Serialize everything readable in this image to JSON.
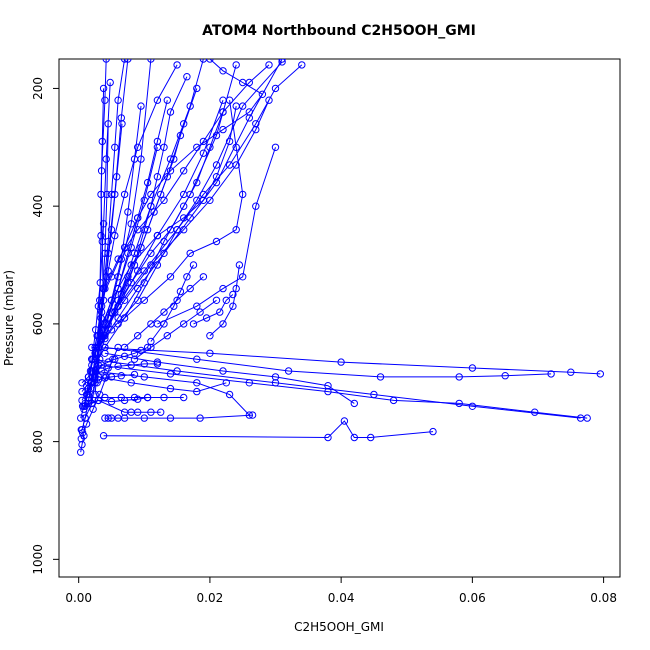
{
  "chart_data": {
    "type": "line",
    "title": "ATOM4 Northbound C2H5OOH_GMI",
    "xlabel": "C2H5OOH_GMI",
    "ylabel": "Pressure (mbar)",
    "xlim": [
      -0.003,
      0.0825
    ],
    "ylim": [
      1030,
      150
    ],
    "y_reversed": true,
    "x_ticks": [
      0.0,
      0.02,
      0.04,
      0.06,
      0.08
    ],
    "x_tick_labels": [
      "0.00",
      "0.02",
      "0.04",
      "0.06",
      "0.08"
    ],
    "y_ticks": [
      200,
      400,
      600,
      800,
      1000
    ],
    "y_tick_labels": [
      "200",
      "400",
      "600",
      "800",
      "1000"
    ],
    "marker": "open-circle",
    "color": "#0000ff",
    "series": [
      {
        "x": [
          0.0003,
          0.0005,
          0.0008,
          0.0006,
          0.0004
        ],
        "y": [
          818,
          805,
          790,
          785,
          780
        ]
      },
      {
        "x": [
          0.0005,
          0.001,
          0.002,
          0.0025,
          0.003,
          0.0032,
          0.0034,
          0.0035,
          0.004,
          0.0042
        ],
        "y": [
          780,
          760,
          735,
          700,
          640,
          560,
          450,
          340,
          220,
          150
        ]
      },
      {
        "x": [
          0.001,
          0.0015,
          0.0022,
          0.003,
          0.0038,
          0.0045,
          0.0055,
          0.0065,
          0.0075
        ],
        "y": [
          760,
          730,
          690,
          640,
          560,
          480,
          380,
          250,
          150
        ]
      },
      {
        "x": [
          0.0008,
          0.0018,
          0.003,
          0.0045,
          0.006,
          0.008,
          0.0095,
          0.011
        ],
        "y": [
          745,
          700,
          650,
          590,
          520,
          430,
          320,
          150
        ]
      },
      {
        "x": [
          0.0012,
          0.0025,
          0.004,
          0.006,
          0.0085,
          0.011,
          0.014,
          0.017,
          0.019
        ],
        "y": [
          720,
          680,
          625,
          560,
          480,
          400,
          320,
          230,
          150
        ]
      },
      {
        "x": [
          0.002,
          0.004,
          0.007,
          0.01,
          0.013,
          0.017,
          0.021,
          0.024
        ],
        "y": [
          680,
          640,
          590,
          530,
          460,
          380,
          280,
          160
        ]
      },
      {
        "x": [
          0.0025,
          0.005,
          0.009,
          0.012,
          0.015,
          0.018,
          0.021,
          0.025,
          0.031
        ],
        "y": [
          650,
          610,
          560,
          500,
          440,
          390,
          330,
          230,
          155
        ]
      },
      {
        "x": [
          0.003,
          0.006,
          0.009,
          0.013,
          0.017,
          0.021,
          0.026,
          0.031
        ],
        "y": [
          640,
          590,
          540,
          480,
          420,
          360,
          250,
          150
        ]
      },
      {
        "x": [
          0.0035,
          0.006,
          0.01,
          0.015,
          0.019,
          0.023,
          0.027,
          0.03,
          0.034
        ],
        "y": [
          625,
          570,
          510,
          440,
          380,
          330,
          260,
          200,
          160
        ]
      },
      {
        "x": [
          0.004,
          0.007,
          0.011,
          0.016,
          0.02,
          0.024,
          0.027,
          0.029
        ],
        "y": [
          610,
          560,
          500,
          440,
          390,
          330,
          270,
          220
        ]
      },
      {
        "x": [
          0.002,
          0.004,
          0.006,
          0.009,
          0.012,
          0.016,
          0.019,
          0.022
        ],
        "y": [
          660,
          620,
          570,
          510,
          450,
          380,
          310,
          220
        ]
      },
      {
        "x": [
          0.006,
          0.01,
          0.014,
          0.017,
          0.021,
          0.024,
          0.025,
          0.024,
          0.023
        ],
        "y": [
          600,
          560,
          520,
          480,
          460,
          440,
          380,
          300,
          220
        ]
      },
      {
        "x": [
          0.012,
          0.018,
          0.022,
          0.025,
          0.027,
          0.03
        ],
        "y": [
          600,
          570,
          540,
          520,
          400,
          300
        ]
      },
      {
        "x": [
          0.003,
          0.005,
          0.007,
          0.009,
          0.011,
          0.014,
          0.018,
          0.022,
          0.026,
          0.028,
          0.025,
          0.022,
          0.02
        ],
        "y": [
          570,
          520,
          470,
          420,
          380,
          340,
          300,
          270,
          240,
          210,
          190,
          170,
          150
        ]
      },
      {
        "x": [
          0.004,
          0.006,
          0.009,
          0.013,
          0.016,
          0.019,
          0.022,
          0.026,
          0.029
        ],
        "y": [
          540,
          490,
          440,
          390,
          340,
          290,
          240,
          190,
          160
        ]
      },
      {
        "x": [
          0.0015,
          0.0025,
          0.0035,
          0.0045,
          0.0055,
          0.007,
          0.009,
          0.012,
          0.015
        ],
        "y": [
          700,
          640,
          580,
          510,
          450,
          380,
          300,
          220,
          160
        ]
      },
      {
        "x": [
          0.003,
          0.005,
          0.008,
          0.012,
          0.016,
          0.019,
          0.021,
          0.023,
          0.024
        ],
        "y": [
          620,
          560,
          500,
          450,
          420,
          390,
          350,
          290,
          230
        ]
      },
      {
        "x": [
          0.005,
          0.008,
          0.011,
          0.014,
          0.016,
          0.018,
          0.02,
          0.022
        ],
        "y": [
          580,
          530,
          480,
          440,
          400,
          360,
          300,
          240
        ]
      },
      {
        "x": [
          0.0015,
          0.0028,
          0.0038,
          0.0045,
          0.005,
          0.0055,
          0.006,
          0.007
        ],
        "y": [
          690,
          620,
          540,
          460,
          380,
          300,
          220,
          150
        ]
      },
      {
        "x": [
          0.001,
          0.0018,
          0.0026,
          0.0033,
          0.0038,
          0.0042,
          0.0048
        ],
        "y": [
          735,
          680,
          610,
          530,
          430,
          320,
          190
        ]
      },
      {
        "x": [
          0.0022,
          0.004,
          0.006,
          0.008,
          0.01,
          0.012
        ],
        "y": [
          660,
          600,
          540,
          470,
          390,
          300
        ]
      },
      {
        "x": [
          0.002,
          0.0035,
          0.005,
          0.0065,
          0.0075,
          0.0085,
          0.0095
        ],
        "y": [
          670,
          610,
          560,
          490,
          410,
          320,
          230
        ]
      },
      {
        "x": [
          0.0025,
          0.003,
          0.0035,
          0.004,
          0.0043,
          0.0045
        ],
        "y": [
          720,
          650,
          570,
          480,
          380,
          260
        ]
      },
      {
        "x": [
          0.003,
          0.0045,
          0.006,
          0.0075,
          0.009,
          0.0105,
          0.012,
          0.0135
        ],
        "y": [
          640,
          590,
          540,
          480,
          420,
          360,
          290,
          220
        ]
      },
      {
        "x": [
          0.0035,
          0.0055,
          0.0075,
          0.0095,
          0.0115,
          0.0135,
          0.0155,
          0.018
        ],
        "y": [
          620,
          580,
          530,
          470,
          410,
          350,
          280,
          200
        ]
      },
      {
        "x": [
          0.0045,
          0.0065,
          0.0085,
          0.0105,
          0.0125,
          0.0145,
          0.016
        ],
        "y": [
          600,
          550,
          500,
          440,
          380,
          320,
          260
        ]
      },
      {
        "x": [
          0.0028,
          0.0033,
          0.0037,
          0.0036,
          0.0034,
          0.0036,
          0.0038
        ],
        "y": [
          700,
          620,
          540,
          460,
          380,
          290,
          200
        ]
      },
      {
        "x": [
          0.0018,
          0.0026,
          0.0034,
          0.0042,
          0.005,
          0.0058,
          0.0066
        ],
        "y": [
          710,
          650,
          590,
          520,
          440,
          350,
          260
        ]
      },
      {
        "x": [
          0.006,
          0.0075,
          0.009,
          0.01,
          0.011,
          0.012,
          0.013,
          0.014,
          0.0165
        ],
        "y": [
          560,
          520,
          480,
          440,
          400,
          350,
          300,
          240,
          180
        ]
      },
      {
        "x": [
          0.002,
          0.02,
          0.04,
          0.06,
          0.075,
          0.0795
        ],
        "y": [
          640,
          650,
          665,
          675,
          682,
          685
        ]
      },
      {
        "x": [
          0.002,
          0.015,
          0.03,
          0.045,
          0.06,
          0.0765
        ],
        "y": [
          660,
          680,
          700,
          720,
          740,
          760
        ]
      },
      {
        "x": [
          0.004,
          0.018,
          0.032,
          0.046,
          0.058,
          0.065,
          0.072
        ],
        "y": [
          640,
          660,
          680,
          690,
          690,
          688,
          685
        ]
      },
      {
        "x": [
          0.003,
          0.014,
          0.026,
          0.038,
          0.048,
          0.058,
          0.0695,
          0.0775
        ],
        "y": [
          670,
          685,
          700,
          715,
          730,
          735,
          750,
          760
        ]
      },
      {
        "x": [
          0.004,
          0.012,
          0.022,
          0.03,
          0.038,
          0.042
        ],
        "y": [
          650,
          665,
          680,
          690,
          705,
          735
        ]
      },
      {
        "x": [
          0.002,
          0.01,
          0.018,
          0.023,
          0.026
        ],
        "y": [
          680,
          690,
          700,
          720,
          755
        ]
      },
      {
        "x": [
          0.003,
          0.008,
          0.014,
          0.018,
          0.0225
        ],
        "y": [
          690,
          700,
          710,
          715,
          700
        ]
      },
      {
        "x": [
          0.0038,
          0.038,
          0.0405,
          0.042,
          0.0445,
          0.054
        ],
        "y": [
          790,
          793,
          765,
          793,
          793,
          783
        ]
      },
      {
        "x": [
          0.004,
          0.0045,
          0.005,
          0.006,
          0.007,
          0.01,
          0.014,
          0.0185,
          0.0265
        ],
        "y": [
          760,
          760,
          760,
          760,
          760,
          760,
          760,
          760,
          755
        ]
      },
      {
        "x": [
          0.001,
          0.002,
          0.003,
          0.007,
          0.008,
          0.009,
          0.011,
          0.0125
        ],
        "y": [
          740,
          735,
          730,
          750,
          750,
          750,
          750,
          750
        ]
      },
      {
        "x": [
          0.0015,
          0.004,
          0.0065,
          0.0085,
          0.0105,
          0.013,
          0.016
        ],
        "y": [
          725,
          725,
          725,
          725,
          725,
          725,
          725
        ]
      },
      {
        "x": [
          0.0005,
          0.0015,
          0.0025,
          0.0035,
          0.0045,
          0.006,
          0.008,
          0.01,
          0.012
        ],
        "y": [
          730,
          710,
          690,
          680,
          675,
          672,
          670,
          668,
          668
        ]
      },
      {
        "x": [
          0.0005,
          0.0012,
          0.002,
          0.003,
          0.004,
          0.005,
          0.0065,
          0.0085
        ],
        "y": [
          715,
          705,
          698,
          695,
          692,
          690,
          688,
          686
        ]
      },
      {
        "x": [
          0.0006,
          0.0015,
          0.003,
          0.005,
          0.007,
          0.009,
          0.0105
        ],
        "y": [
          740,
          735,
          730,
          732,
          730,
          728,
          725
        ]
      },
      {
        "x": [
          0.0004,
          0.0012,
          0.0022,
          0.0032,
          0.0042,
          0.0052,
          0.006
        ],
        "y": [
          795,
          770,
          745,
          720,
          690,
          660,
          640
        ]
      },
      {
        "x": [
          0.0005,
          0.0015,
          0.0025,
          0.0035,
          0.0045,
          0.0055,
          0.007,
          0.0085,
          0.0095,
          0.0105
        ],
        "y": [
          700,
          690,
          680,
          670,
          665,
          660,
          655,
          650,
          645,
          640
        ]
      },
      {
        "x": [
          0.0003,
          0.0008,
          0.0014,
          0.002,
          0.0026,
          0.0032
        ],
        "y": [
          760,
          740,
          720,
          700,
          680,
          660
        ]
      },
      {
        "x": [
          0.011,
          0.013,
          0.0145,
          0.0155,
          0.0165,
          0.0175
        ],
        "y": [
          630,
          600,
          570,
          545,
          520,
          500
        ]
      },
      {
        "x": [
          0.007,
          0.009,
          0.011,
          0.013,
          0.015,
          0.017,
          0.019
        ],
        "y": [
          640,
          620,
          600,
          580,
          560,
          540,
          520
        ]
      },
      {
        "x": [
          0.0085,
          0.011,
          0.0135,
          0.016,
          0.0185,
          0.021
        ],
        "y": [
          660,
          640,
          620,
          600,
          580,
          560
        ]
      },
      {
        "x": [
          0.02,
          0.022,
          0.0235,
          0.024,
          0.0245
        ],
        "y": [
          620,
          600,
          570,
          540,
          500
        ]
      },
      {
        "x": [
          0.0175,
          0.0195,
          0.0215,
          0.0225,
          0.0235
        ],
        "y": [
          600,
          590,
          580,
          560,
          550
        ]
      }
    ]
  }
}
